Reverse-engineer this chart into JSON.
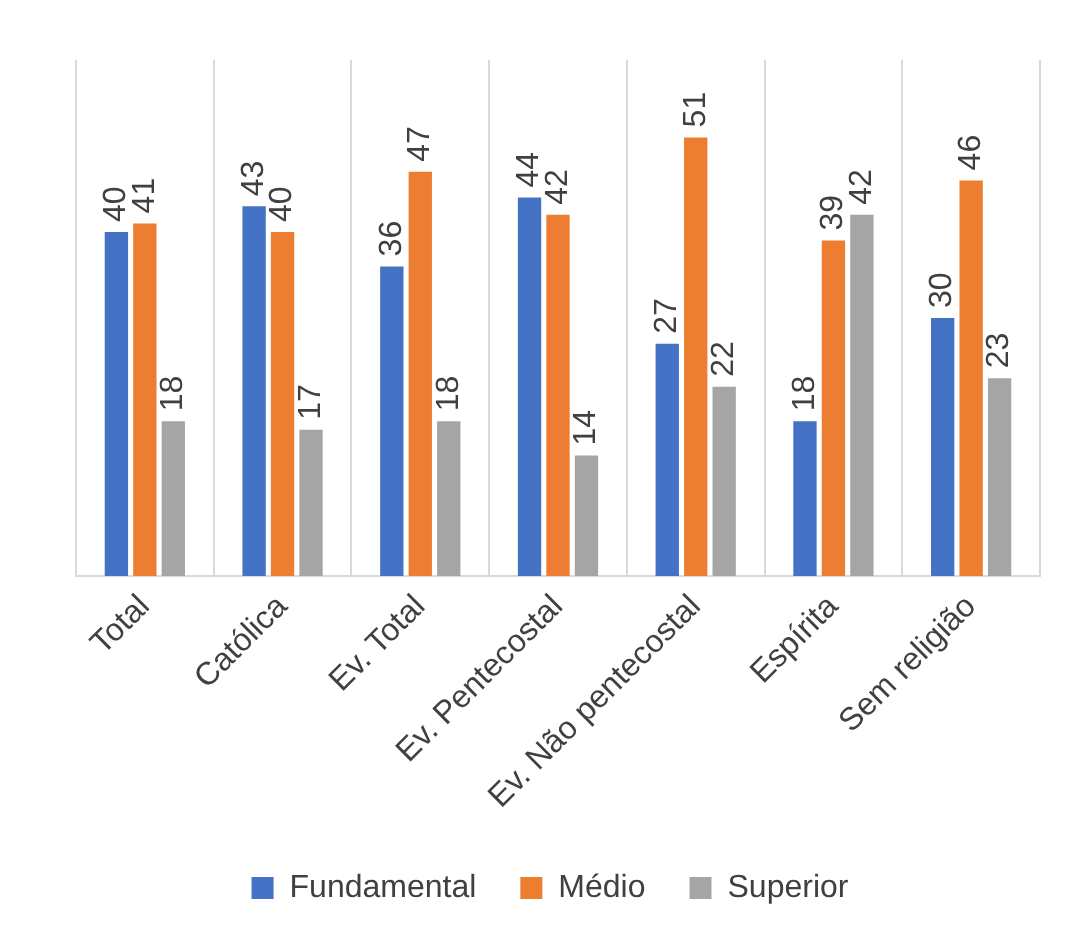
{
  "chart_data": {
    "type": "bar",
    "categories": [
      "Total",
      "Católica",
      "Ev. Total",
      "Ev. Pentecostal",
      "Ev. Não pentecostal",
      "Espírita",
      "Sem religião"
    ],
    "series": [
      {
        "name": "Fundamental",
        "color": "#4472c4",
        "values": [
          40,
          43,
          36,
          44,
          27,
          18,
          30
        ]
      },
      {
        "name": "Médio",
        "color": "#ed7d31",
        "values": [
          41,
          40,
          47,
          42,
          51,
          39,
          46
        ]
      },
      {
        "name": "Superior",
        "color": "#a5a5a5",
        "values": [
          18,
          17,
          18,
          14,
          22,
          42,
          23
        ]
      }
    ],
    "data_labels": true,
    "grid": "x",
    "legend": "bottom",
    "relative": false
  }
}
